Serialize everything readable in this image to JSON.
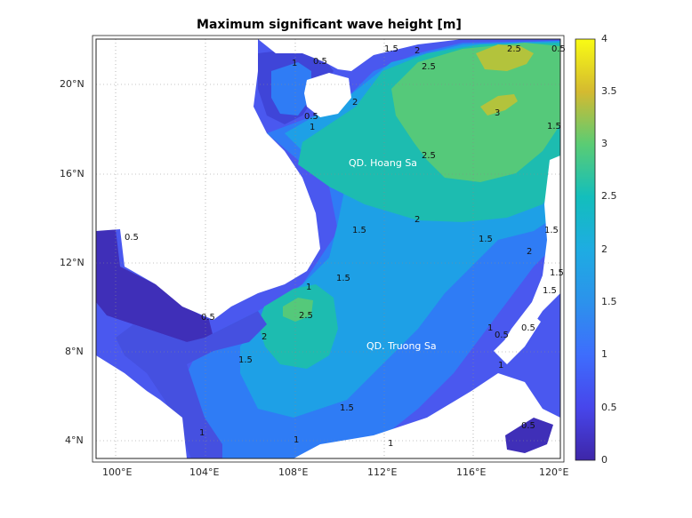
{
  "title": "Maximum significant wave height [m]",
  "map": {
    "x_ticks": [
      "100°E",
      "104°E",
      "108°E",
      "112°E",
      "116°E",
      "120°E"
    ],
    "y_ticks": [
      "20°N",
      "16°N",
      "12°N",
      "8°N",
      "4°N"
    ],
    "place_labels": [
      "QD. Hoang Sa",
      "QD. Truong Sa"
    ],
    "contour_labels": [
      "1",
      "0.5",
      "1.5",
      "2.5",
      "2",
      "0.5",
      "1",
      "2",
      "2.5",
      "3",
      "2.5",
      "1.5",
      "2",
      "1.5",
      "1.5",
      "1.5",
      "2",
      "1.5",
      "1.5",
      "1",
      "0.5",
      "2.5",
      "2",
      "1.5",
      "1.5",
      "0.5",
      "1",
      "0.5",
      "1",
      "1",
      "1.5",
      "1",
      "0.5",
      "1",
      "0.5",
      "0.5"
    ],
    "colors": {
      "ocean_low": "#3e26a8",
      "mid": "#2db7a5",
      "high": "#f9fb14",
      "land": "#ffffff"
    }
  },
  "colorbar": {
    "ticks": [
      "4",
      "3.5",
      "3",
      "2.5",
      "2",
      "1.5",
      "1",
      "0.5",
      "0"
    ],
    "colormap": "parula",
    "range": [
      0,
      4
    ]
  }
}
